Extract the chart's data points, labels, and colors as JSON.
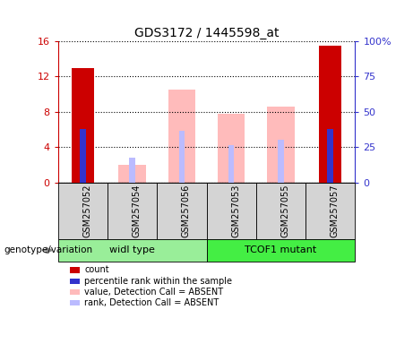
{
  "title": "GDS3172 / 1445598_at",
  "samples": [
    "GSM257052",
    "GSM257054",
    "GSM257056",
    "GSM257053",
    "GSM257055",
    "GSM257057"
  ],
  "count_values": [
    13.0,
    0,
    0,
    0,
    0,
    15.5
  ],
  "percentile_rank_values": [
    6.0,
    0,
    0,
    0,
    0,
    6.0
  ],
  "absent_value_bars": [
    0,
    2.0,
    10.5,
    7.8,
    8.6,
    0
  ],
  "absent_rank_bars": [
    0,
    2.8,
    5.8,
    4.2,
    4.8,
    0
  ],
  "ylim": [
    0,
    16
  ],
  "y2lim": [
    0,
    100
  ],
  "yticks": [
    0,
    4,
    8,
    12,
    16
  ],
  "y2ticks": [
    0,
    25,
    50,
    75,
    100
  ],
  "color_count": "#cc0000",
  "color_rank": "#3333cc",
  "color_absent_value": "#ffbbbb",
  "color_absent_rank": "#bbbbff",
  "color_group1": "#99ee99",
  "color_group2": "#44ee44",
  "group_label": "genotype/variation",
  "absent_bar_width": 0.55,
  "count_bar_width": 0.45,
  "rank_bar_width": 0.12
}
